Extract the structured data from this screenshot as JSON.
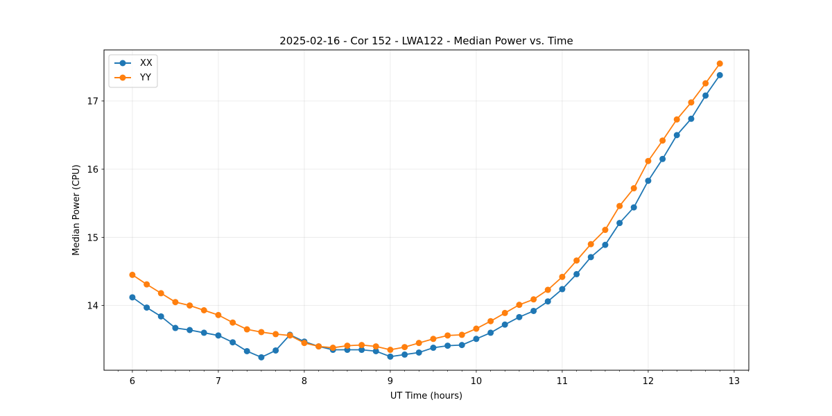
{
  "chart_data": {
    "type": "line",
    "title": "2025-02-16 - Cor 152 - LWA122 - Median Power vs. Time",
    "xlabel": "UT Time (hours)",
    "ylabel": "Median Power (CPU)",
    "xlim": [
      5.67,
      13.17
    ],
    "ylim": [
      13.05,
      17.75
    ],
    "xticks": [
      6,
      7,
      8,
      9,
      10,
      11,
      12,
      13
    ],
    "yticks": [
      14,
      15,
      16,
      17
    ],
    "grid": true,
    "legend_position": "top-left",
    "x": [
      6.0,
      6.167,
      6.333,
      6.5,
      6.667,
      6.833,
      7.0,
      7.167,
      7.333,
      7.5,
      7.667,
      7.833,
      8.0,
      8.167,
      8.333,
      8.5,
      8.667,
      8.833,
      9.0,
      9.167,
      9.333,
      9.5,
      9.667,
      9.833,
      10.0,
      10.167,
      10.333,
      10.5,
      10.667,
      10.833,
      11.0,
      11.167,
      11.333,
      11.5,
      11.667,
      11.833,
      12.0,
      12.167,
      12.333,
      12.5,
      12.667,
      12.833
    ],
    "series": [
      {
        "name": "XX",
        "color": "#1f77b4",
        "values": [
          14.12,
          13.97,
          13.84,
          13.67,
          13.64,
          13.6,
          13.56,
          13.46,
          13.33,
          13.24,
          13.34,
          13.57,
          13.47,
          13.4,
          13.35,
          13.35,
          13.35,
          13.33,
          13.25,
          13.28,
          13.31,
          13.38,
          13.41,
          13.42,
          13.51,
          13.6,
          13.72,
          13.83,
          13.92,
          14.06,
          14.24,
          14.46,
          14.71,
          14.89,
          15.21,
          15.44,
          15.83,
          16.15,
          16.5,
          16.74,
          17.08,
          17.38
        ]
      },
      {
        "name": "YY",
        "color": "#ff7f0e",
        "values": [
          14.45,
          14.31,
          14.18,
          14.05,
          14.0,
          13.93,
          13.86,
          13.75,
          13.65,
          13.61,
          13.58,
          13.56,
          13.45,
          13.4,
          13.38,
          13.41,
          13.42,
          13.4,
          13.35,
          13.39,
          13.45,
          13.51,
          13.56,
          13.57,
          13.66,
          13.77,
          13.89,
          14.01,
          14.09,
          14.23,
          14.42,
          14.66,
          14.9,
          15.11,
          15.46,
          15.72,
          16.12,
          16.42,
          16.73,
          16.98,
          17.26,
          17.55
        ]
      }
    ]
  }
}
